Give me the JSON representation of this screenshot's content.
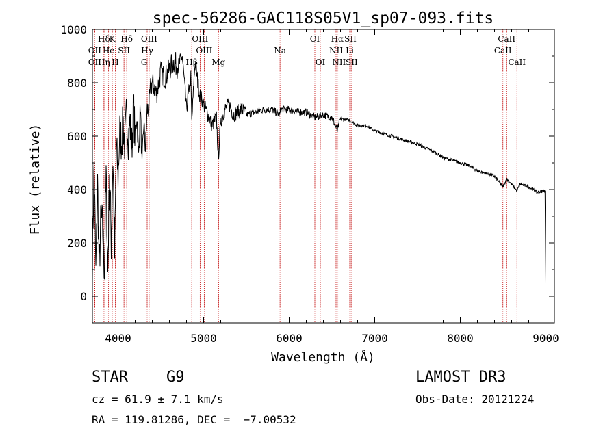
{
  "colors": {
    "spectrum": "#000000",
    "line_marker": "#c00000",
    "axes": "#000000"
  },
  "chart_data": {
    "type": "line",
    "title": "spec-56286-GAC118S05V1_sp07-093.fits",
    "xlabel": "Wavelength (Å)",
    "ylabel": "Flux (relative)",
    "xlim": [
      3700,
      9100
    ],
    "ylim": [
      -100,
      1000
    ],
    "xticks": [
      4000,
      5000,
      6000,
      7000,
      8000,
      9000
    ],
    "yticks": [
      0,
      200,
      400,
      600,
      800,
      1000
    ],
    "series": [
      {
        "name": "spectrum",
        "x": [
          3700,
          3720,
          3740,
          3760,
          3780,
          3800,
          3820,
          3840,
          3860,
          3880,
          3900,
          3920,
          3940,
          3960,
          3980,
          4000,
          4020,
          4040,
          4060,
          4080,
          4100,
          4120,
          4140,
          4160,
          4180,
          4200,
          4220,
          4240,
          4260,
          4280,
          4300,
          4320,
          4340,
          4360,
          4380,
          4400,
          4450,
          4500,
          4550,
          4600,
          4650,
          4700,
          4750,
          4800,
          4850,
          4861,
          4900,
          4950,
          5000,
          5050,
          5100,
          5150,
          5172,
          5200,
          5250,
          5300,
          5350,
          5400,
          5450,
          5500,
          5600,
          5700,
          5800,
          5890,
          5900,
          6000,
          6100,
          6200,
          6300,
          6400,
          6500,
          6563,
          6600,
          6700,
          6800,
          6900,
          7000,
          7100,
          7200,
          7300,
          7400,
          7500,
          7600,
          7700,
          7800,
          7900,
          8000,
          8100,
          8200,
          8300,
          8400,
          8498,
          8542,
          8600,
          8662,
          8700,
          8800,
          8900,
          8990,
          9000
        ],
        "y": [
          150,
          500,
          80,
          420,
          100,
          300,
          250,
          100,
          450,
          90,
          480,
          200,
          520,
          150,
          560,
          450,
          620,
          580,
          650,
          560,
          690,
          600,
          650,
          560,
          700,
          600,
          680,
          520,
          720,
          480,
          650,
          550,
          700,
          700,
          780,
          800,
          760,
          840,
          820,
          850,
          880,
          860,
          900,
          700,
          820,
          650,
          880,
          760,
          720,
          680,
          640,
          670,
          520,
          660,
          700,
          720,
          680,
          690,
          700,
          680,
          690,
          700,
          700,
          680,
          700,
          700,
          690,
          690,
          670,
          680,
          670,
          620,
          665,
          660,
          640,
          640,
          620,
          610,
          600,
          590,
          580,
          570,
          555,
          540,
          520,
          510,
          500,
          490,
          470,
          460,
          450,
          410,
          440,
          420,
          395,
          420,
          410,
          390,
          395,
          50
        ]
      }
    ],
    "line_marks": [
      {
        "label": "Hδ",
        "row": 1,
        "wl": 3835
      },
      {
        "label": "K",
        "row": 1,
        "wl": 3933
      },
      {
        "label": "Hδ",
        "row": 1,
        "wl": 4101
      },
      {
        "label": "OII",
        "row": 2,
        "wl": 3727
      },
      {
        "label": "He",
        "row": 2,
        "wl": 3889
      },
      {
        "label": "SII",
        "row": 2,
        "wl": 4069
      },
      {
        "label": "OII",
        "row": 3,
        "wl": 3727
      },
      {
        "label": "Hη",
        "row": 3,
        "wl": 3835
      },
      {
        "label": "H",
        "row": 3,
        "wl": 3968
      },
      {
        "label": "OIII",
        "row": 1,
        "wl": 4363
      },
      {
        "label": "Hγ",
        "row": 2,
        "wl": 4340
      },
      {
        "label": "G",
        "row": 3,
        "wl": 4304
      },
      {
        "label": "OIII",
        "row": 1,
        "wl": 4959
      },
      {
        "label": "OIII",
        "row": 2,
        "wl": 5007
      },
      {
        "label": "Hβ",
        "row": 3,
        "wl": 4861
      },
      {
        "label": "Mg",
        "row": 3,
        "wl": 5175
      },
      {
        "label": "Na",
        "row": 2,
        "wl": 5893
      },
      {
        "label": "OI",
        "row": 1,
        "wl": 6300
      },
      {
        "label": "OI",
        "row": 3,
        "wl": 6364
      },
      {
        "label": "Hα",
        "row": 1,
        "wl": 6563
      },
      {
        "label": "SII",
        "row": 1,
        "wl": 6716
      },
      {
        "label": "NII",
        "row": 2,
        "wl": 6548
      },
      {
        "label": "Li",
        "row": 2,
        "wl": 6708
      },
      {
        "label": "NII",
        "row": 3,
        "wl": 6583
      },
      {
        "label": "SII",
        "row": 3,
        "wl": 6731
      },
      {
        "label": "CaII",
        "row": 1,
        "wl": 8542
      },
      {
        "label": "CaII",
        "row": 2,
        "wl": 8498
      },
      {
        "label": "CaII",
        "row": 3,
        "wl": 8662
      }
    ]
  },
  "info": {
    "object_class": "STAR",
    "subclass": "G9",
    "cz": "cz = 61.9 ± 7.1 km/s",
    "coords": "RA = 119.81286, DEC =  −7.00532",
    "survey": "LAMOST DR3",
    "obs_date": "Obs-Date: 20121224"
  }
}
